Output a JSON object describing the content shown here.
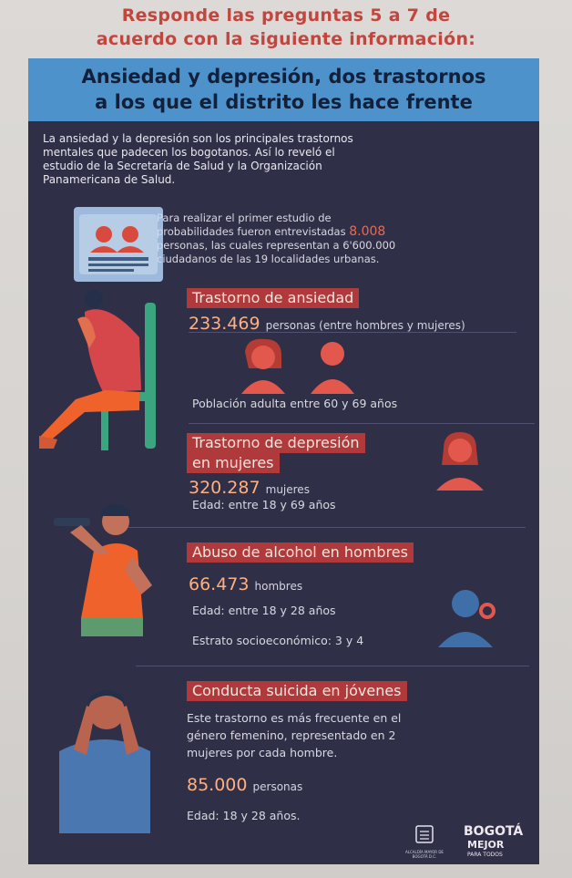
{
  "question": {
    "line1": "Responde las preguntas 5 a 7 de",
    "line2": "acuerdo con la siguiente información:"
  },
  "poster": {
    "title_line1": "Ansiedad y depresión, dos trastornos",
    "title_line2": "a los que el distrito les hace frente",
    "intro_lines": [
      "La ansiedad y la depresión son los principales trastornos",
      "mentales que padecen los bogotanos. Así lo reveló el",
      "estudio de la Secretaría de Salud y la Organización",
      "Panamericana de Salud."
    ],
    "study": {
      "line1": "Para realizar el primer estudio de",
      "line2_prefix": "probabilidades fueron entrevistadas",
      "line2_number": "8.008",
      "line3": "personas, las cuales representan a 6'600.000",
      "line4": "ciudadanos de las 19 localidades urbanas."
    },
    "anxiety": {
      "label": "Trastorno de ansiedad",
      "number": "233.469",
      "number_note": "personas (entre hombres y mujeres)",
      "population": "Población adulta entre 60 y 69 años"
    },
    "depression": {
      "label_line1": "Trastorno de depresión",
      "label_line2": "en mujeres",
      "number": "320.287",
      "number_note": "mujeres",
      "age": "Edad: entre 18 y 69 años"
    },
    "alcohol": {
      "label": "Abuso de alcohol en hombres",
      "number": "66.473",
      "number_note": "hombres",
      "age": "Edad: entre 18 y 28 años",
      "strata": "Estrato socioeconómico: 3 y 4"
    },
    "suicide": {
      "label": "Conducta suicida en jóvenes",
      "desc_line1": "Este trastorno es más frecuente en el",
      "desc_line2": "género femenino, representado en 2",
      "desc_line3": "mujeres por cada hombre.",
      "number": "85.000",
      "number_note": "personas",
      "age": "Edad: 18 y 28 años."
    },
    "logo": {
      "brand_top": "BOGOTÁ",
      "brand_main": "MEJOR",
      "brand_sub": "PARA TODOS",
      "alcaldia": "ALCALDÍA MAYOR DE BOGOTÁ D.C."
    }
  },
  "colors": {
    "poster_bg": "#2f2f48",
    "title_band": "#4e92cc",
    "label_bg": "#b03a3b",
    "number": "#ffb07f",
    "question": "#c2453e"
  }
}
